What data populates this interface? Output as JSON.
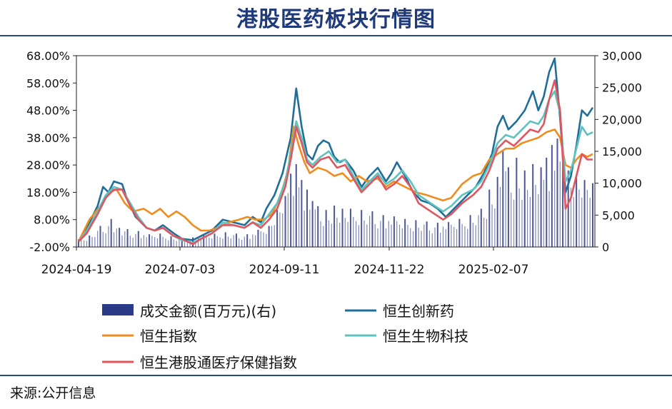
{
  "title": "港股医药板块行情图",
  "source": "来源:公开信息",
  "chart_data": {
    "type": "line",
    "secondary_type": "bar",
    "x_tick_labels": [
      "2024-04-19",
      "2024-07-03",
      "2024-09-11",
      "2024-11-22",
      "2025-02-07"
    ],
    "y_left_ticks": [
      "68.00%",
      "58.00%",
      "48.00%",
      "38.00%",
      "28.00%",
      "18.00%",
      "8.00%",
      "-2.00%"
    ],
    "y_right_ticks": [
      "30,000",
      "25,000",
      "20,000",
      "15,000",
      "10,000",
      "5,000",
      "0"
    ],
    "ylim_left": [
      -2,
      68
    ],
    "ylim_right": [
      0,
      30000
    ],
    "legend": [
      {
        "label": "成交金额(百万元)(右)",
        "kind": "bar",
        "color": "#2b3a86"
      },
      {
        "label": "恒生创新药",
        "kind": "line",
        "color": "#1f6e99"
      },
      {
        "label": "恒生指数",
        "kind": "line",
        "color": "#f08c1e"
      },
      {
        "label": "恒生生物科技",
        "kind": "line",
        "color": "#5ec2c0"
      },
      {
        "label": "恒生港股通医疗保健指数",
        "kind": "line",
        "color": "#e0555e"
      }
    ],
    "series": [
      {
        "key": "innov",
        "color": "#1f6e99",
        "points": [
          [
            0,
            0
          ],
          [
            3,
            5
          ],
          [
            7,
            13
          ],
          [
            9,
            20
          ],
          [
            11,
            18
          ],
          [
            13,
            22
          ],
          [
            16,
            21
          ],
          [
            18,
            15
          ],
          [
            21,
            9
          ],
          [
            25,
            5
          ],
          [
            28,
            4
          ],
          [
            31,
            6
          ],
          [
            35,
            3
          ],
          [
            38,
            1
          ],
          [
            42,
            0.5
          ],
          [
            45,
            2
          ],
          [
            49,
            4
          ],
          [
            53,
            8
          ],
          [
            57,
            7
          ],
          [
            61,
            6
          ],
          [
            64,
            9
          ],
          [
            67,
            7
          ],
          [
            69,
            12
          ],
          [
            72,
            17
          ],
          [
            75,
            25
          ],
          [
            78,
            38
          ],
          [
            80,
            56
          ],
          [
            82,
            42
          ],
          [
            84,
            32
          ],
          [
            86,
            30
          ],
          [
            88,
            35
          ],
          [
            90,
            37
          ],
          [
            92,
            36
          ],
          [
            94,
            31
          ],
          [
            96,
            29
          ],
          [
            98,
            30
          ],
          [
            101,
            26
          ],
          [
            104,
            20
          ],
          [
            107,
            24
          ],
          [
            110,
            27
          ],
          [
            113,
            22
          ],
          [
            115,
            25
          ],
          [
            117,
            29
          ],
          [
            120,
            24
          ],
          [
            123,
            18
          ],
          [
            126,
            15
          ],
          [
            129,
            14
          ],
          [
            132,
            12
          ],
          [
            135,
            9
          ],
          [
            138,
            12
          ],
          [
            142,
            16
          ],
          [
            146,
            20
          ],
          [
            149,
            25
          ],
          [
            152,
            32
          ],
          [
            154,
            42
          ],
          [
            156,
            46
          ],
          [
            158,
            41
          ],
          [
            161,
            44
          ],
          [
            164,
            48
          ],
          [
            167,
            55
          ],
          [
            169,
            48
          ],
          [
            171,
            53
          ],
          [
            173,
            62
          ],
          [
            175,
            67
          ],
          [
            177,
            45
          ],
          [
            179,
            18
          ],
          [
            181,
            24
          ],
          [
            183,
            35
          ],
          [
            185,
            48
          ],
          [
            187,
            46
          ],
          [
            189,
            49
          ]
        ]
      },
      {
        "key": "hsi",
        "color": "#f08c1e",
        "points": [
          [
            0,
            0
          ],
          [
            4,
            8
          ],
          [
            8,
            13
          ],
          [
            11,
            18
          ],
          [
            14,
            19
          ],
          [
            17,
            14
          ],
          [
            20,
            11
          ],
          [
            24,
            12
          ],
          [
            27,
            10
          ],
          [
            30,
            12
          ],
          [
            33,
            9
          ],
          [
            36,
            11
          ],
          [
            39,
            9
          ],
          [
            42,
            6
          ],
          [
            45,
            4
          ],
          [
            48,
            4
          ],
          [
            51,
            5
          ],
          [
            55,
            7
          ],
          [
            59,
            8
          ],
          [
            62,
            9
          ],
          [
            65,
            8
          ],
          [
            68,
            8
          ],
          [
            71,
            10
          ],
          [
            74,
            16
          ],
          [
            77,
            26
          ],
          [
            79,
            42
          ],
          [
            81,
            35
          ],
          [
            83,
            29
          ],
          [
            85,
            25
          ],
          [
            88,
            27
          ],
          [
            91,
            26
          ],
          [
            94,
            24
          ],
          [
            97,
            25
          ],
          [
            100,
            22
          ],
          [
            103,
            24
          ],
          [
            106,
            22
          ],
          [
            110,
            23
          ],
          [
            113,
            20
          ],
          [
            116,
            22
          ],
          [
            120,
            20
          ],
          [
            124,
            18
          ],
          [
            128,
            17
          ],
          [
            131,
            16
          ],
          [
            134,
            15
          ],
          [
            137,
            16
          ],
          [
            141,
            21
          ],
          [
            145,
            24
          ],
          [
            148,
            25
          ],
          [
            151,
            30
          ],
          [
            154,
            32
          ],
          [
            157,
            34
          ],
          [
            160,
            34
          ],
          [
            163,
            36
          ],
          [
            166,
            37
          ],
          [
            169,
            38
          ],
          [
            172,
            40
          ],
          [
            175,
            41
          ],
          [
            177,
            38
          ],
          [
            179,
            28
          ],
          [
            181,
            27
          ],
          [
            183,
            30
          ],
          [
            185,
            32
          ],
          [
            187,
            31
          ],
          [
            189,
            32
          ]
        ]
      },
      {
        "key": "bio",
        "color": "#5ec2c0",
        "points": [
          [
            0,
            0
          ],
          [
            3,
            4
          ],
          [
            7,
            11
          ],
          [
            10,
            17
          ],
          [
            13,
            20
          ],
          [
            16,
            19
          ],
          [
            19,
            14
          ],
          [
            22,
            9
          ],
          [
            25,
            5
          ],
          [
            28,
            4
          ],
          [
            31,
            5
          ],
          [
            35,
            2
          ],
          [
            38,
            0.5
          ],
          [
            42,
            -0.5
          ],
          [
            45,
            1
          ],
          [
            49,
            3
          ],
          [
            53,
            7
          ],
          [
            57,
            6
          ],
          [
            61,
            5
          ],
          [
            64,
            7
          ],
          [
            67,
            6
          ],
          [
            70,
            10
          ],
          [
            73,
            14
          ],
          [
            76,
            22
          ],
          [
            78,
            32
          ],
          [
            80,
            44
          ],
          [
            82,
            38
          ],
          [
            84,
            30
          ],
          [
            86,
            28
          ],
          [
            89,
            31
          ],
          [
            92,
            33
          ],
          [
            95,
            29
          ],
          [
            98,
            30
          ],
          [
            101,
            24
          ],
          [
            104,
            19
          ],
          [
            107,
            22
          ],
          [
            110,
            25
          ],
          [
            113,
            21
          ],
          [
            116,
            23
          ],
          [
            119,
            26
          ],
          [
            122,
            22
          ],
          [
            125,
            17
          ],
          [
            128,
            15
          ],
          [
            131,
            13
          ],
          [
            134,
            11
          ],
          [
            137,
            13
          ],
          [
            141,
            17
          ],
          [
            145,
            19
          ],
          [
            148,
            22
          ],
          [
            151,
            28
          ],
          [
            154,
            36
          ],
          [
            157,
            39
          ],
          [
            160,
            38
          ],
          [
            163,
            41
          ],
          [
            166,
            44
          ],
          [
            169,
            43
          ],
          [
            171,
            46
          ],
          [
            173,
            52
          ],
          [
            175,
            55
          ],
          [
            177,
            47
          ],
          [
            179,
            22
          ],
          [
            181,
            26
          ],
          [
            183,
            34
          ],
          [
            185,
            42
          ],
          [
            187,
            39
          ],
          [
            189,
            40
          ]
        ]
      },
      {
        "key": "hc",
        "color": "#e0555e",
        "points": [
          [
            0,
            0
          ],
          [
            3,
            3
          ],
          [
            7,
            10
          ],
          [
            10,
            16
          ],
          [
            13,
            19
          ],
          [
            16,
            19
          ],
          [
            19,
            13
          ],
          [
            22,
            8
          ],
          [
            25,
            5
          ],
          [
            28,
            4
          ],
          [
            31,
            5
          ],
          [
            35,
            2
          ],
          [
            38,
            1
          ],
          [
            42,
            -1
          ],
          [
            45,
            1
          ],
          [
            49,
            3
          ],
          [
            53,
            6
          ],
          [
            57,
            6
          ],
          [
            61,
            5
          ],
          [
            64,
            7
          ],
          [
            67,
            5
          ],
          [
            70,
            8
          ],
          [
            73,
            12
          ],
          [
            76,
            20
          ],
          [
            78,
            30
          ],
          [
            80,
            42
          ],
          [
            82,
            36
          ],
          [
            84,
            29
          ],
          [
            86,
            27
          ],
          [
            89,
            30
          ],
          [
            92,
            31
          ],
          [
            95,
            27
          ],
          [
            98,
            28
          ],
          [
            101,
            23
          ],
          [
            104,
            18
          ],
          [
            107,
            21
          ],
          [
            110,
            24
          ],
          [
            113,
            19
          ],
          [
            116,
            21
          ],
          [
            119,
            24
          ],
          [
            122,
            20
          ],
          [
            125,
            14
          ],
          [
            128,
            12
          ],
          [
            131,
            10
          ],
          [
            134,
            8
          ],
          [
            137,
            10
          ],
          [
            141,
            14
          ],
          [
            145,
            17
          ],
          [
            148,
            20
          ],
          [
            151,
            26
          ],
          [
            154,
            34
          ],
          [
            157,
            37
          ],
          [
            160,
            35
          ],
          [
            163,
            38
          ],
          [
            166,
            41
          ],
          [
            169,
            40
          ],
          [
            171,
            43
          ],
          [
            173,
            52
          ],
          [
            175,
            59
          ],
          [
            177,
            48
          ],
          [
            179,
            12
          ],
          [
            181,
            16
          ],
          [
            183,
            24
          ],
          [
            185,
            32
          ],
          [
            187,
            30
          ],
          [
            189,
            30
          ]
        ]
      }
    ],
    "bars": [
      {
        "i": 0,
        "v": 1200
      },
      {
        "i": 4,
        "v": 1800
      },
      {
        "i": 8,
        "v": 3300
      },
      {
        "i": 12,
        "v": 4400
      },
      {
        "i": 15,
        "v": 3000
      },
      {
        "i": 18,
        "v": 2800
      },
      {
        "i": 22,
        "v": 2500
      },
      {
        "i": 26,
        "v": 2000
      },
      {
        "i": 30,
        "v": 2100
      },
      {
        "i": 34,
        "v": 1700
      },
      {
        "i": 38,
        "v": 1400
      },
      {
        "i": 42,
        "v": 1500
      },
      {
        "i": 46,
        "v": 1800
      },
      {
        "i": 50,
        "v": 2100
      },
      {
        "i": 54,
        "v": 2300
      },
      {
        "i": 58,
        "v": 2100
      },
      {
        "i": 62,
        "v": 2000
      },
      {
        "i": 66,
        "v": 2700
      },
      {
        "i": 70,
        "v": 3300
      },
      {
        "i": 73,
        "v": 5800
      },
      {
        "i": 76,
        "v": 8000
      },
      {
        "i": 78,
        "v": 11500
      },
      {
        "i": 80,
        "v": 13000
      },
      {
        "i": 82,
        "v": 10500
      },
      {
        "i": 84,
        "v": 9000
      },
      {
        "i": 86,
        "v": 7200
      },
      {
        "i": 88,
        "v": 6400
      },
      {
        "i": 91,
        "v": 5800
      },
      {
        "i": 94,
        "v": 6500
      },
      {
        "i": 97,
        "v": 6000
      },
      {
        "i": 100,
        "v": 6000
      },
      {
        "i": 104,
        "v": 5800
      },
      {
        "i": 108,
        "v": 5600
      },
      {
        "i": 112,
        "v": 5000
      },
      {
        "i": 116,
        "v": 4800
      },
      {
        "i": 120,
        "v": 4400
      },
      {
        "i": 124,
        "v": 4200
      },
      {
        "i": 128,
        "v": 4000
      },
      {
        "i": 132,
        "v": 3800
      },
      {
        "i": 136,
        "v": 3900
      },
      {
        "i": 140,
        "v": 4400
      },
      {
        "i": 144,
        "v": 5000
      },
      {
        "i": 148,
        "v": 6000
      },
      {
        "i": 151,
        "v": 9000
      },
      {
        "i": 154,
        "v": 11000
      },
      {
        "i": 156,
        "v": 15000
      },
      {
        "i": 158,
        "v": 12500
      },
      {
        "i": 161,
        "v": 14000
      },
      {
        "i": 164,
        "v": 12000
      },
      {
        "i": 167,
        "v": 13000
      },
      {
        "i": 170,
        "v": 12500
      },
      {
        "i": 172,
        "v": 14000
      },
      {
        "i": 174,
        "v": 16000
      },
      {
        "i": 176,
        "v": 17000
      },
      {
        "i": 178,
        "v": 14000
      },
      {
        "i": 180,
        "v": 12000
      },
      {
        "i": 183,
        "v": 11000
      },
      {
        "i": 186,
        "v": 10500
      },
      {
        "i": 189,
        "v": 10000
      }
    ],
    "x_max_index": 189
  }
}
